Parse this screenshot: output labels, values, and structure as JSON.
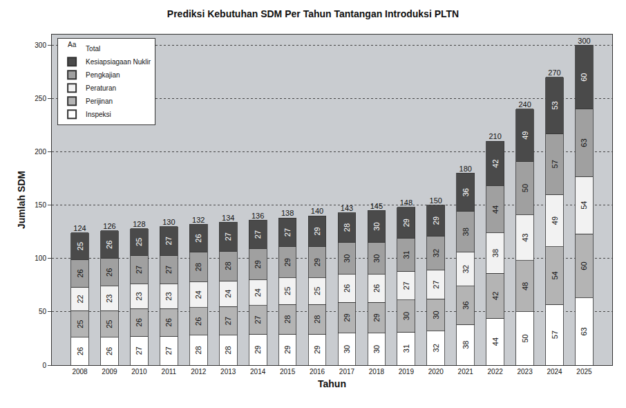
{
  "chart_data": {
    "type": "bar",
    "title": "Prediksi Kebutuhan SDM Per Tahun Tantangan Introduksi PLTN",
    "x_label": "Tahun",
    "y_label": "Jumlah SDM",
    "categories": [
      "2008",
      "2009",
      "2010",
      "2011",
      "2012",
      "2013",
      "2014",
      "2015",
      "2016",
      "2017",
      "2018",
      "2019",
      "2020",
      "2021",
      "2022",
      "2023",
      "2024",
      "2025"
    ],
    "series": [
      {
        "name": "Inspeksi",
        "color": "#ffffff",
        "values": [
          26,
          26,
          27,
          27,
          28,
          28,
          29,
          29,
          29,
          30,
          30,
          31,
          32,
          38,
          44,
          50,
          57,
          63
        ]
      },
      {
        "name": "Perijinan",
        "color": "#b4b4b4",
        "values": [
          25,
          25,
          26,
          26,
          26,
          27,
          27,
          28,
          28,
          29,
          29,
          30,
          30,
          36,
          42,
          48,
          54,
          60
        ]
      },
      {
        "name": "Peraturan",
        "color": "#f2f2f2",
        "values": [
          22,
          23,
          23,
          23,
          24,
          24,
          24,
          25,
          25,
          26,
          26,
          27,
          27,
          32,
          38,
          43,
          49,
          54
        ]
      },
      {
        "name": "Pengkajian",
        "color": "#a0a0a0",
        "values": [
          26,
          26,
          27,
          27,
          28,
          28,
          29,
          29,
          29,
          30,
          30,
          31,
          32,
          38,
          44,
          50,
          57,
          63
        ]
      },
      {
        "name": "Kesiapsiagaan Nuklir",
        "color": "#4a4a4a",
        "values": [
          25,
          26,
          25,
          27,
          26,
          27,
          27,
          27,
          29,
          28,
          30,
          29,
          29,
          36,
          42,
          49,
          53,
          60
        ]
      }
    ],
    "totals": {
      "name": "Total",
      "values": [
        124,
        126,
        128,
        130,
        132,
        134,
        136,
        138,
        140,
        143,
        145,
        148,
        150,
        180,
        210,
        240,
        270,
        300
      ]
    },
    "ylim": [
      0,
      310
    ],
    "yticks": [
      0,
      50,
      100,
      150,
      200,
      250,
      300
    ],
    "stacked": true,
    "data_labels": true,
    "grid": true,
    "legend": "top-left"
  }
}
